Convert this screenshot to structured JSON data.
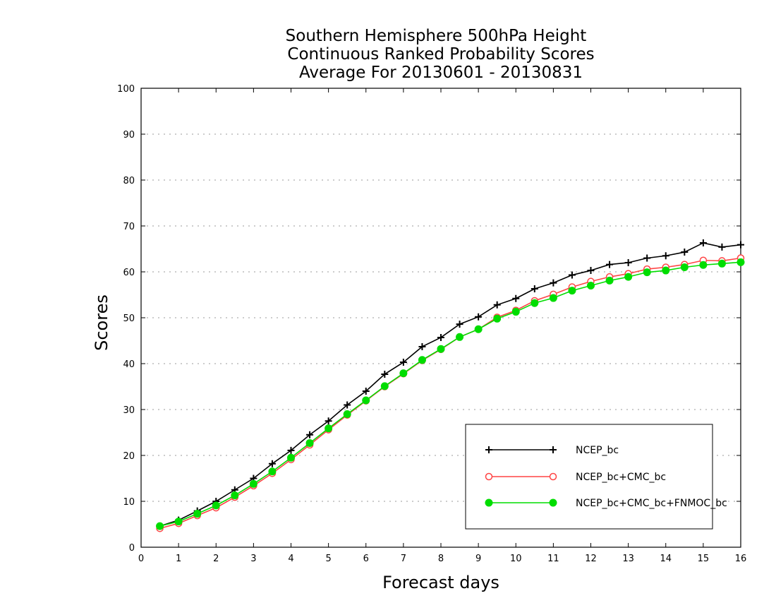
{
  "chart_data": {
    "type": "line",
    "title": [
      "Southern Hemisphere 500hPa Height",
      "Continuous Ranked Probability Scores",
      "Average For 20130601 - 20130831"
    ],
    "xlabel": "Forecast days",
    "ylabel": "Scores",
    "xlim": [
      0,
      16
    ],
    "ylim": [
      0,
      100
    ],
    "x_ticks": [
      "0",
      "1",
      "2",
      "3",
      "4",
      "5",
      "6",
      "7",
      "8",
      "9",
      "10",
      "11",
      "12",
      "13",
      "14",
      "15",
      "16"
    ],
    "y_ticks": [
      "0",
      "10",
      "20",
      "30",
      "40",
      "50",
      "60",
      "70",
      "80",
      "90",
      "100"
    ],
    "grid": "horizontal-dotted",
    "legend_position": "bottom-right",
    "x": [
      0.5,
      1,
      1.5,
      2,
      2.5,
      3,
      3.5,
      4,
      4.5,
      5,
      5.5,
      6,
      6.5,
      7,
      7.5,
      8,
      8.5,
      9,
      9.5,
      10,
      10.5,
      11,
      11.5,
      12,
      12.5,
      13,
      13.5,
      14,
      14.5,
      15,
      15.5,
      16
    ],
    "series": [
      {
        "name": "NCEP_bc",
        "color": "#000000",
        "marker": "plus",
        "values": [
          4.6,
          5.9,
          7.9,
          10.0,
          12.5,
          15.0,
          18.2,
          21.1,
          24.5,
          27.5,
          31.0,
          34.0,
          37.7,
          40.3,
          43.7,
          45.7,
          48.6,
          50.2,
          52.8,
          54.2,
          56.3,
          57.6,
          59.3,
          60.3,
          61.6,
          62.0,
          63.0,
          63.5,
          64.3,
          66.3,
          65.4,
          65.9
        ]
      },
      {
        "name": "NCEP_bc+CMC_bc",
        "color": "#ff4444",
        "marker": "open-circle",
        "values": [
          4.1,
          5.2,
          6.9,
          8.6,
          10.9,
          13.4,
          16.1,
          19.1,
          22.3,
          25.6,
          28.8,
          31.9,
          35.0,
          37.8,
          40.7,
          43.1,
          45.8,
          47.5,
          50.1,
          51.6,
          53.7,
          55.1,
          56.7,
          57.9,
          58.9,
          59.6,
          60.6,
          61.0,
          61.6,
          62.5,
          62.4,
          63.0
        ]
      },
      {
        "name": "NCEP_bc+CMC_bc+FNMOC_bc",
        "color": "#00dd00",
        "marker": "filled-circle",
        "values": [
          4.6,
          5.6,
          7.3,
          9.1,
          11.3,
          13.8,
          16.5,
          19.5,
          22.7,
          25.9,
          29.0,
          32.0,
          35.1,
          37.9,
          40.8,
          43.2,
          45.8,
          47.5,
          49.8,
          51.3,
          53.2,
          54.3,
          55.9,
          57.0,
          58.1,
          58.9,
          59.9,
          60.3,
          61.0,
          61.5,
          61.8,
          62.1
        ]
      }
    ]
  }
}
